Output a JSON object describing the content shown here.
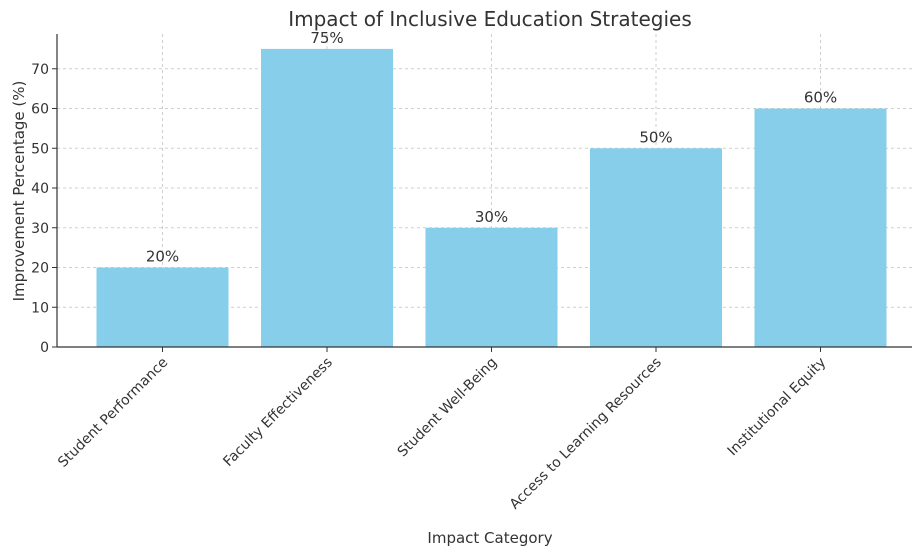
{
  "chart_data": {
    "type": "bar",
    "title": "Impact of Inclusive Education Strategies",
    "xlabel": "Impact Category",
    "ylabel": "Improvement Percentage (%)",
    "categories": [
      "Student Performance",
      "Faculty Effectiveness",
      "Student Well-Being",
      "Access to Learning Resources",
      "Institutional Equity"
    ],
    "values": [
      20,
      75,
      30,
      50,
      60
    ],
    "data_labels": [
      "20%",
      "75%",
      "30%",
      "50%",
      "60%"
    ],
    "ylim": [
      0,
      78.75
    ],
    "yticks": [
      0,
      10,
      20,
      30,
      40,
      50,
      60,
      70
    ],
    "grid": true,
    "bar_color": "#87ceeb"
  }
}
